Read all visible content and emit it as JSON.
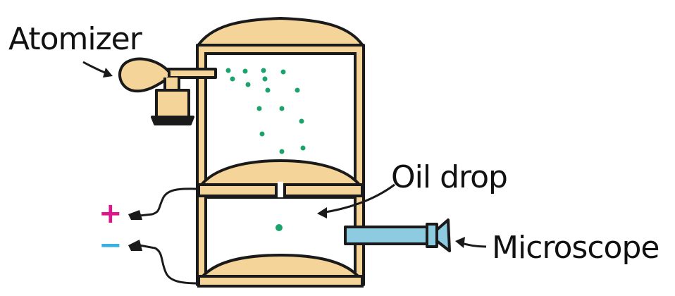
{
  "labels": {
    "atomizer": "Atomizer",
    "oil_drop": "Oil drop",
    "microscope": "Microscope"
  },
  "terminals": {
    "positive": "+",
    "negative": "−"
  },
  "colors": {
    "frame": "#f5d49a",
    "outline": "#1a1a1a",
    "drops": "#1aa36b",
    "microscope": "#8ccbe0",
    "positive": "#e0148c",
    "negative": "#3ab0e0",
    "chamber": "#ffffff"
  }
}
